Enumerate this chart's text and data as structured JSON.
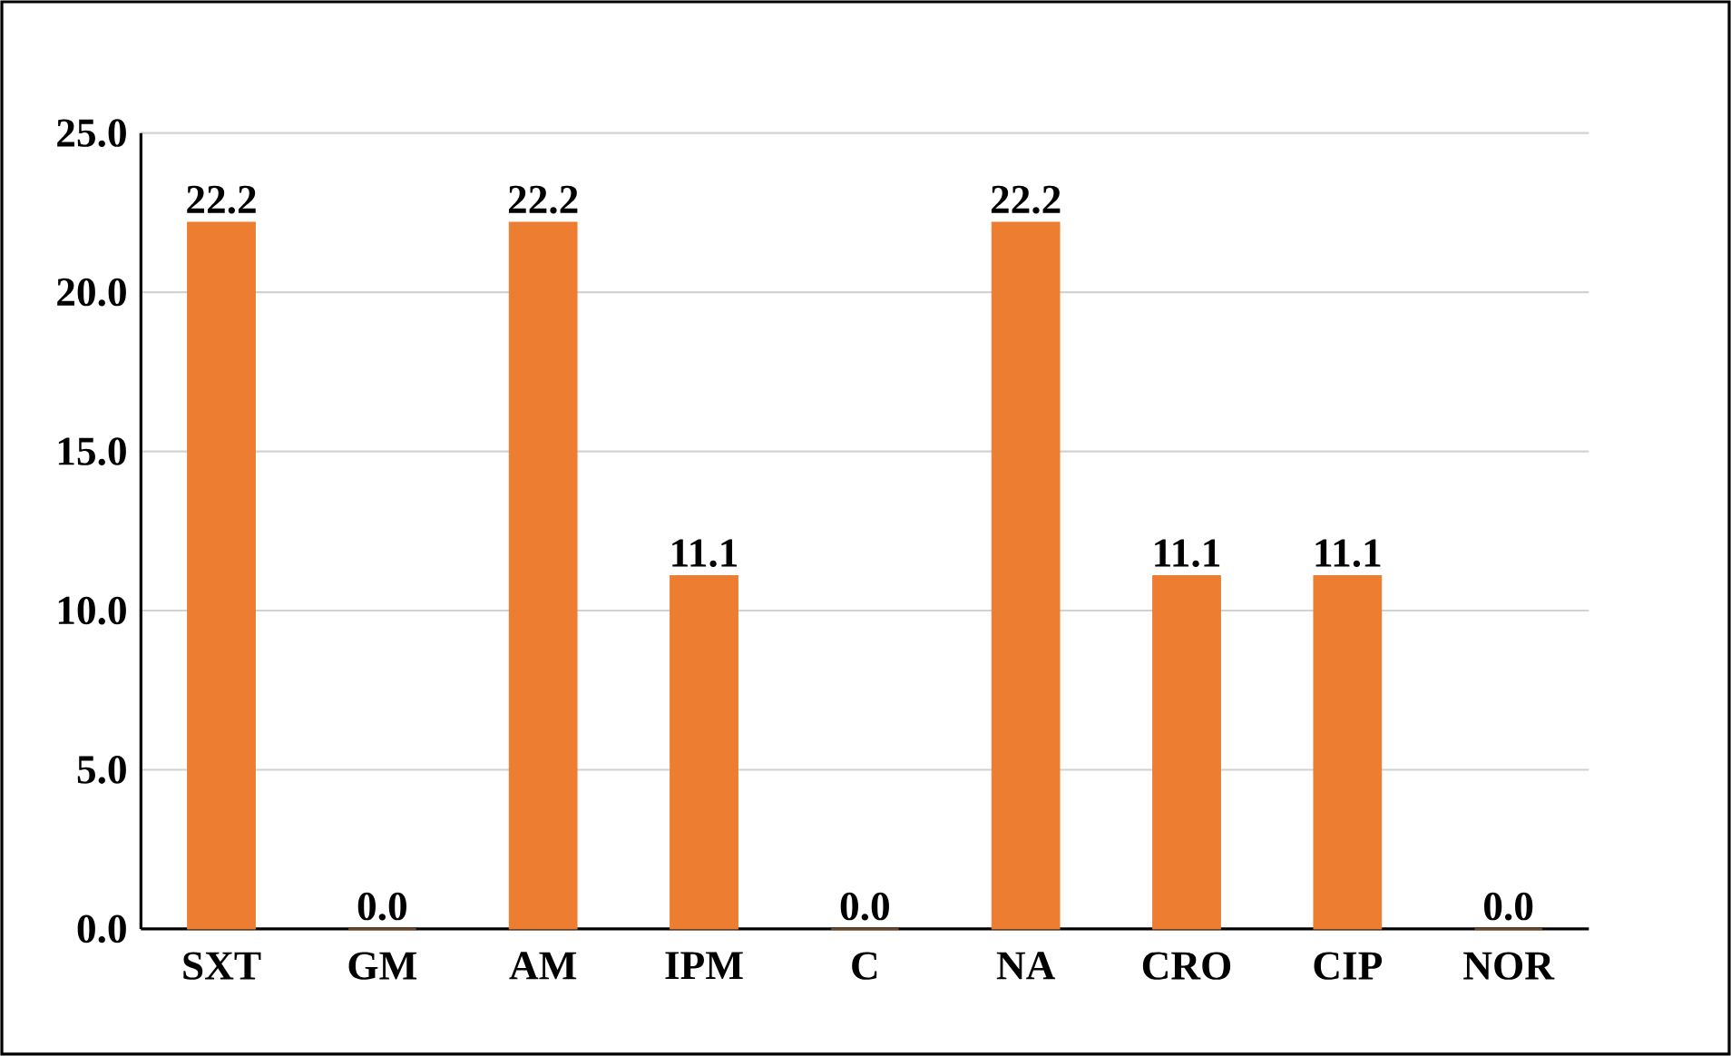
{
  "chart_data": {
    "type": "bar",
    "categories": [
      "SXT",
      "GM",
      "AM",
      "IPM",
      "C",
      "NA",
      "CRO",
      "CIP",
      "NOR"
    ],
    "values": [
      22.2,
      0,
      22.2,
      11.1,
      0,
      22.2,
      11.1,
      11.1,
      0
    ],
    "value_labels": [
      "22.2",
      "0.0",
      "22.2",
      "11.1",
      "0.0",
      "22.2",
      "11.1",
      "11.1",
      "0.0"
    ],
    "color": "#ed7d31",
    "ylim": [
      0,
      25
    ],
    "yticks": [
      {
        "value": 0,
        "label": "0.0"
      },
      {
        "value": 5,
        "label": "5.0"
      },
      {
        "value": 10,
        "label": "10.0"
      },
      {
        "value": 15,
        "label": "15.0"
      },
      {
        "value": 20,
        "label": "20.0"
      },
      {
        "value": 25,
        "label": "25.0"
      }
    ],
    "grid": "y"
  }
}
